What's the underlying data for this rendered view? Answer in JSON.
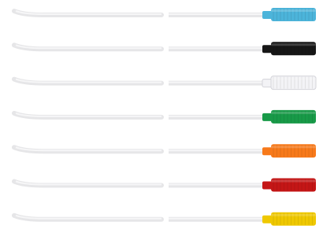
{
  "items": [
    {
      "color": "#4cb4da"
    },
    {
      "color": "#161616"
    },
    {
      "color": "#f3f3f6"
    },
    {
      "color": "#189a48"
    },
    {
      "color": "#f7791a"
    },
    {
      "color": "#c41616"
    },
    {
      "color": "#efc800"
    }
  ]
}
